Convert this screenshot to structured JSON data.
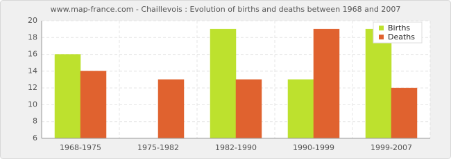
{
  "chart_data": {
    "type": "bar",
    "title": "www.map-france.com - Chaillevois : Evolution of births and deaths between 1968 and 2007",
    "categories": [
      "1968-1975",
      "1975-1982",
      "1982-1990",
      "1990-1999",
      "1999-2007"
    ],
    "series": [
      {
        "name": "Births",
        "color": "#bde12e",
        "values": [
          16,
          6,
          19,
          13,
          19
        ]
      },
      {
        "name": "Deaths",
        "color": "#e0622f",
        "values": [
          14,
          13,
          13,
          19,
          12
        ]
      }
    ],
    "ylim": [
      6,
      20
    ],
    "yticks": [
      6,
      8,
      10,
      12,
      14,
      16,
      18,
      20
    ],
    "grid": true,
    "legend": "top-right"
  }
}
